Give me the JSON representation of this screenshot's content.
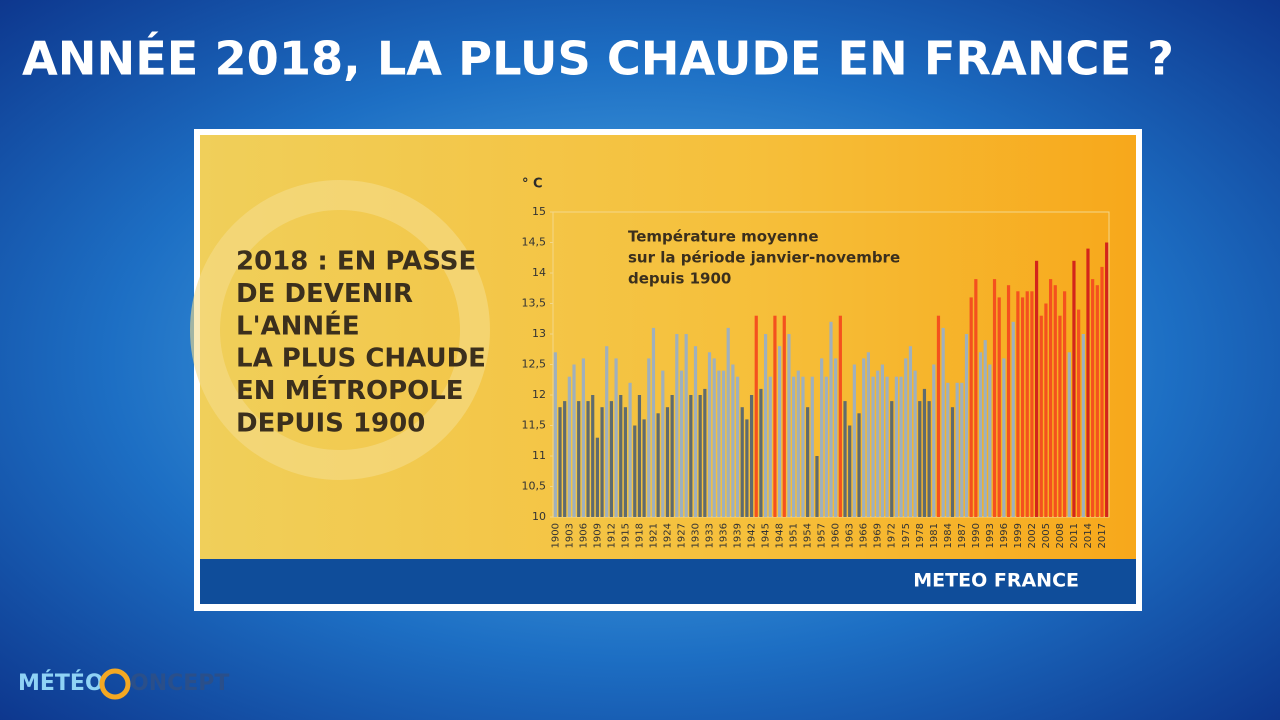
{
  "header": {
    "title": "ANNÉE 2018, LA PLUS CHAUDE EN FRANCE ?"
  },
  "panel": {
    "headline": [
      "2018 : EN PASSE",
      "DE DEVENIR",
      "L'ANNÉE",
      "LA PLUS CHAUDE",
      "EN MÉTROPOLE",
      "DEPUIS 1900"
    ]
  },
  "footer": {
    "brand": "METEO FRANCE"
  },
  "logo": {
    "left": "MÉTÉO",
    "right": "ONCEPT"
  },
  "chart_data": {
    "type": "bar",
    "title": [
      "Température moyenne",
      "sur la période janvier-novembre",
      "depuis 1900"
    ],
    "y_label": "° C",
    "categories": [
      "1900",
      null,
      null,
      "1903",
      null,
      null,
      "1906",
      null,
      null,
      "1909",
      null,
      null,
      "1912",
      null,
      null,
      "1915",
      null,
      null,
      "1918",
      null,
      null,
      "1921",
      null,
      null,
      "1924",
      null,
      null,
      "1927",
      null,
      null,
      "1930",
      null,
      null,
      "1933",
      null,
      null,
      "1936",
      null,
      null,
      "1939",
      null,
      null,
      "1942",
      null,
      null,
      "1945",
      null,
      null,
      "1948",
      null,
      null,
      "1951",
      null,
      null,
      "1954",
      null,
      null,
      "1957",
      null,
      null,
      "1960",
      null,
      null,
      "1963",
      null,
      null,
      "1966",
      null,
      null,
      "1969",
      null,
      null,
      "1972",
      null,
      null,
      "1975",
      null,
      null,
      "1978",
      null,
      null,
      "1981",
      null,
      null,
      "1984",
      null,
      null,
      "1987",
      null,
      null,
      "1990",
      null,
      null,
      "1993",
      null,
      null,
      "1996",
      null,
      null,
      "1999",
      null,
      null,
      "2002",
      null,
      null,
      "2005",
      null,
      null,
      "2008",
      null,
      null,
      "2011",
      null,
      null,
      "2014",
      null,
      null,
      "2017",
      null
    ],
    "values": [
      12.7,
      11.8,
      11.9,
      12.3,
      12.5,
      11.9,
      12.6,
      11.9,
      12.0,
      11.3,
      11.8,
      12.8,
      11.9,
      12.6,
      12.0,
      11.8,
      12.2,
      11.5,
      12.0,
      11.6,
      12.6,
      13.1,
      11.7,
      12.4,
      11.8,
      12.0,
      13.0,
      12.4,
      13.0,
      12.0,
      12.8,
      12.0,
      12.1,
      12.7,
      12.6,
      12.4,
      12.4,
      13.1,
      12.5,
      12.3,
      11.8,
      11.6,
      12.0,
      13.3,
      12.1,
      13.0,
      12.3,
      13.3,
      12.8,
      13.3,
      13.0,
      12.3,
      12.4,
      12.3,
      11.8,
      12.3,
      11.0,
      12.6,
      12.3,
      13.2,
      12.6,
      13.3,
      11.9,
      11.5,
      12.5,
      11.7,
      12.6,
      12.7,
      12.3,
      12.4,
      12.5,
      12.3,
      11.9,
      12.3,
      12.3,
      12.6,
      12.8,
      12.4,
      11.9,
      12.1,
      11.9,
      12.5,
      13.3,
      13.1,
      12.2,
      11.8,
      12.2,
      12.2,
      13.0,
      13.6,
      13.9,
      12.7,
      12.9,
      12.5,
      13.9,
      13.6,
      12.6,
      13.8,
      13.2,
      13.7,
      13.6,
      13.7,
      13.7,
      14.2,
      13.3,
      13.5,
      13.9,
      13.8,
      13.3,
      13.7,
      12.7,
      14.2,
      13.4,
      13.0,
      14.4,
      13.9,
      13.8,
      14.1,
      14.5
    ],
    "colors": [
      "#9fb0bd",
      "#5f6b6f",
      "#5f6b6f",
      "#9fb0bd",
      "#9fb0bd",
      "#5f6b6f",
      "#9fb0bd",
      "#5f6b6f",
      "#5f6b6f",
      "#5f6b6f",
      "#5f6b6f",
      "#9fb0bd",
      "#5f6b6f",
      "#9fb0bd",
      "#5f6b6f",
      "#5f6b6f",
      "#9fb0bd",
      "#5f6b6f",
      "#5f6b6f",
      "#5f6b6f",
      "#9fb0bd",
      "#9fb0bd",
      "#5f6b6f",
      "#9fb0bd",
      "#5f6b6f",
      "#5f6b6f",
      "#9fb0bd",
      "#9fb0bd",
      "#9fb0bd",
      "#5f6b6f",
      "#9fb0bd",
      "#5f6b6f",
      "#5f6b6f",
      "#9fb0bd",
      "#9fb0bd",
      "#9fb0bd",
      "#9fb0bd",
      "#9fb0bd",
      "#9fb0bd",
      "#9fb0bd",
      "#5f6b6f",
      "#5f6b6f",
      "#5f6b6f",
      "#f4511e",
      "#5f6b6f",
      "#9fb0bd",
      "#9fb0bd",
      "#f4511e",
      "#9fb0bd",
      "#f4511e",
      "#9fb0bd",
      "#9fb0bd",
      "#9fb0bd",
      "#9fb0bd",
      "#5f6b6f",
      "#9fb0bd",
      "#5f6b6f",
      "#9fb0bd",
      "#9fb0bd",
      "#9fb0bd",
      "#9fb0bd",
      "#f4511e",
      "#5f6b6f",
      "#5f6b6f",
      "#9fb0bd",
      "#5f6b6f",
      "#9fb0bd",
      "#9fb0bd",
      "#9fb0bd",
      "#9fb0bd",
      "#9fb0bd",
      "#9fb0bd",
      "#5f6b6f",
      "#9fb0bd",
      "#9fb0bd",
      "#9fb0bd",
      "#9fb0bd",
      "#9fb0bd",
      "#5f6b6f",
      "#5f6b6f",
      "#5f6b6f",
      "#9fb0bd",
      "#f4511e",
      "#9fb0bd",
      "#9fb0bd",
      "#5f6b6f",
      "#9fb0bd",
      "#9fb0bd",
      "#9fb0bd",
      "#f4511e",
      "#f4511e",
      "#9fb0bd",
      "#9fb0bd",
      "#9fb0bd",
      "#f4511e",
      "#f4511e",
      "#9fb0bd",
      "#f4511e",
      "#9fb0bd",
      "#f4511e",
      "#f4511e",
      "#f4511e",
      "#f4511e",
      "#d3251b",
      "#f4511e",
      "#f4511e",
      "#f4511e",
      "#f4511e",
      "#f4511e",
      "#f4511e",
      "#9fb0bd",
      "#d3251b",
      "#f4511e",
      "#9fb0bd",
      "#d3251b",
      "#f4511e",
      "#f4511e",
      "#f4511e",
      "#d3251b"
    ],
    "ylim": [
      10,
      15
    ],
    "yticks": [
      10,
      {
        "value": 10.5,
        "label": "10,5"
      },
      11,
      {
        "value": 11.5,
        "label": "11,5"
      },
      12,
      {
        "value": 12.5,
        "label": "12,5"
      },
      13,
      {
        "value": 13.5,
        "label": "13,5"
      },
      14,
      {
        "value": 14.5,
        "label": "14,5"
      },
      15
    ],
    "grid": false
  }
}
